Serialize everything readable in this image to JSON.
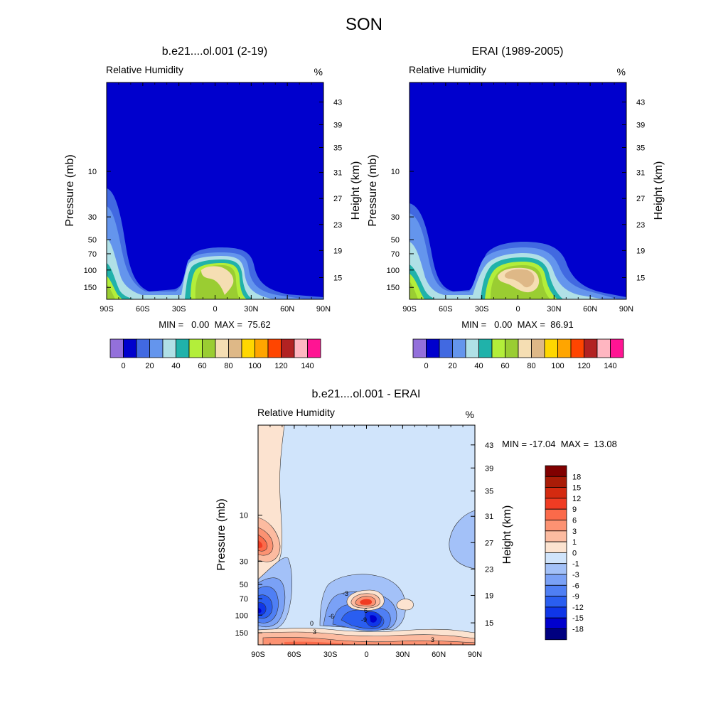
{
  "title": "SON",
  "palette": {
    "rh_colors": [
      "#9370db",
      "#0000cd",
      "#4169e1",
      "#6495ed",
      "#b0e0e6",
      "#20b2aa",
      "#b3ee3a",
      "#9acd32",
      "#f5deb3",
      "#deb887",
      "#ffd700",
      "#ffa500",
      "#ff4500",
      "#b22222",
      "#ffb6c1",
      "#ff1493"
    ],
    "diff_colors": [
      "#000080",
      "#0000cd",
      "#0f36e8",
      "#2a5ef0",
      "#4f7ff4",
      "#7aa1f6",
      "#a3c1f8",
      "#d0e4fb",
      "#fce3d0",
      "#fcbba0",
      "#fc9272",
      "#fb6a4a",
      "#f03c23",
      "#d42a10",
      "#a91c07",
      "#800000"
    ]
  },
  "panels": [
    {
      "id": "model",
      "title": "b.e21....ol.001 (2-19)",
      "label_left": "Relative Humidity",
      "label_right": "%",
      "ylabel_left": "Pressure (mb)",
      "ylabel_right": "Height (km)",
      "stats": "MIN =   0.00  MAX =  75.62"
    },
    {
      "id": "obs",
      "title": "ERAI (1989-2005)",
      "label_left": "Relative Humidity",
      "label_right": "%",
      "ylabel_left": "Pressure (mb)",
      "ylabel_right": "Height (km)",
      "stats": "MIN =   0.00  MAX =  86.91"
    },
    {
      "id": "diff",
      "title": "b.e21....ol.001 - ERAI",
      "label_left": "Relative Humidity",
      "label_right": "%",
      "ylabel_left": "Pressure (mb)",
      "ylabel_right": "Height (km)",
      "stats": "MIN = -17.04  MAX =  13.08"
    }
  ],
  "chart_data": [
    {
      "type": "heatmap",
      "title": "b.e21....ol.001 (2-19)",
      "subtitle": "Relative Humidity",
      "units": "%",
      "xlabel": "",
      "ylabel": "Pressure (mb)",
      "ylabel_right": "Height (km)",
      "x_ticks": [
        "90S",
        "60S",
        "30S",
        "0",
        "30N",
        "60N",
        "90N"
      ],
      "x_range": [
        -90,
        90
      ],
      "y_ticks_pressure": [
        "10",
        "30",
        "50",
        "70",
        "100",
        "150"
      ],
      "y_ticks_height": [
        "43",
        "39",
        "35",
        "31",
        "27",
        "23",
        "19",
        "15"
      ],
      "min": 0.0,
      "max": 75.62,
      "colorbar_ticks": [
        "0",
        "20",
        "40",
        "60",
        "80",
        "100",
        "120",
        "140"
      ]
    },
    {
      "type": "heatmap",
      "title": "ERAI (1989-2005)",
      "subtitle": "Relative Humidity",
      "units": "%",
      "xlabel": "",
      "ylabel": "Pressure (mb)",
      "ylabel_right": "Height (km)",
      "x_ticks": [
        "90S",
        "60S",
        "30S",
        "0",
        "30N",
        "60N",
        "90N"
      ],
      "x_range": [
        -90,
        90
      ],
      "y_ticks_pressure": [
        "10",
        "30",
        "50",
        "70",
        "100",
        "150"
      ],
      "y_ticks_height": [
        "43",
        "39",
        "35",
        "31",
        "27",
        "23",
        "19",
        "15"
      ],
      "min": 0.0,
      "max": 86.91,
      "colorbar_ticks": [
        "0",
        "20",
        "40",
        "60",
        "80",
        "100",
        "120",
        "140"
      ]
    },
    {
      "type": "heatmap",
      "title": "b.e21....ol.001 - ERAI",
      "subtitle": "Relative Humidity",
      "units": "%",
      "xlabel": "",
      "ylabel": "Pressure (mb)",
      "ylabel_right": "Height (km)",
      "x_ticks": [
        "90S",
        "60S",
        "30S",
        "0",
        "30N",
        "60N",
        "90N"
      ],
      "x_range": [
        -90,
        90
      ],
      "y_ticks_pressure": [
        "10",
        "30",
        "50",
        "70",
        "100",
        "150"
      ],
      "y_ticks_height": [
        "43",
        "39",
        "35",
        "31",
        "27",
        "23",
        "19",
        "15"
      ],
      "min": -17.04,
      "max": 13.08,
      "colorbar_ticks": [
        "18",
        "15",
        "12",
        "9",
        "6",
        "3",
        "1",
        "0",
        "-1",
        "-3",
        "-6",
        "-9",
        "-12",
        "-15",
        "-18"
      ],
      "contour_labels": [
        "0",
        "3",
        "-3",
        "6",
        "-6",
        "-9",
        "3"
      ]
    }
  ]
}
